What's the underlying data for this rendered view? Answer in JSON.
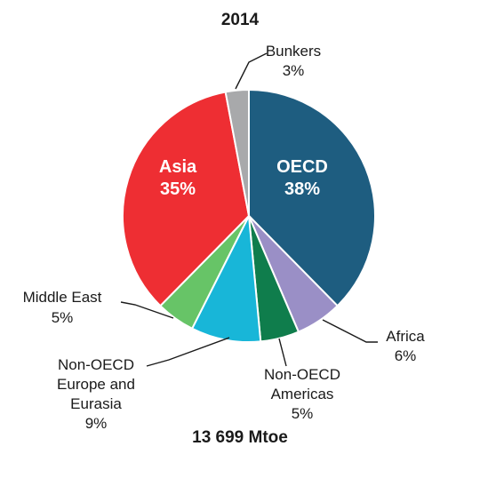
{
  "chart_data": {
    "type": "pie",
    "title": "2014",
    "total_label": "13 699 Mtoe",
    "slices": [
      {
        "label": "OECD",
        "value": 38,
        "value_label": "38%",
        "color": "#1e5d80"
      },
      {
        "label": "Africa",
        "value": 6,
        "value_label": "6%",
        "color": "#9a8fc6"
      },
      {
        "label": "Non-OECD Americas",
        "value": 5,
        "value_label": "5%",
        "color": "#0f7d4c"
      },
      {
        "label": "Non-OECD Europe and Eurasia",
        "value": 9,
        "value_label": "9%",
        "color": "#18b6d8"
      },
      {
        "label": "Middle East",
        "value": 5,
        "value_label": "5%",
        "color": "#67c467"
      },
      {
        "label": "Asia",
        "value": 35,
        "value_label": "35%",
        "color": "#ee2e33"
      },
      {
        "label": "Bunkers",
        "value": 3,
        "value_label": "3%",
        "color": "#a8a9ab"
      }
    ]
  }
}
